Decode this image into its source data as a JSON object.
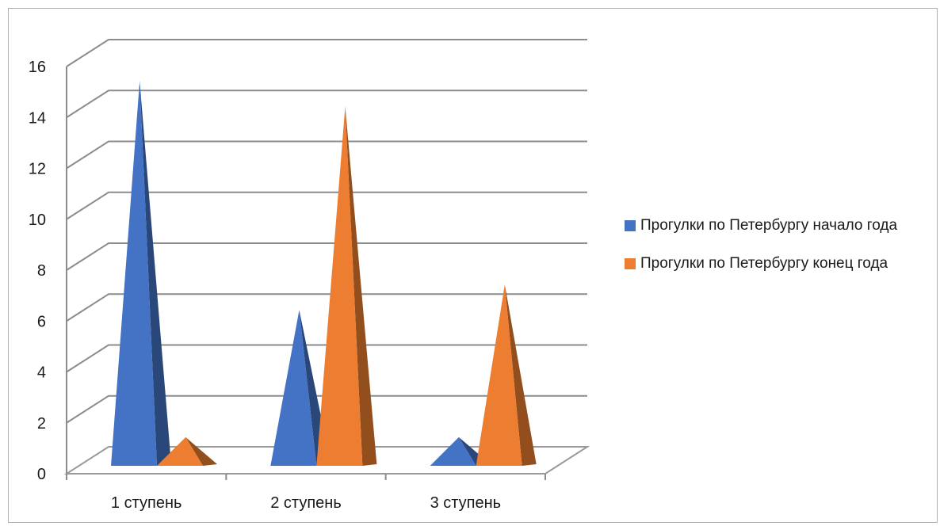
{
  "chart_data": {
    "type": "bar",
    "categories": [
      "1 ступень",
      "2 ступень",
      "3 ступень"
    ],
    "series": [
      {
        "name": "Прогулки по Петербургу начало года",
        "values": [
          15,
          6,
          1
        ],
        "color": "#4472C4"
      },
      {
        "name": "Прогулки по Петербургу конец года",
        "values": [
          1,
          14,
          7
        ],
        "color": "#ED7D31"
      }
    ],
    "y_ticks": [
      "0",
      "2",
      "4",
      "6",
      "8",
      "10",
      "12",
      "14",
      "16"
    ],
    "ylim": [
      0,
      16
    ],
    "grid": true,
    "legend_position": "right",
    "bar_shape": "pyramid-3d"
  }
}
